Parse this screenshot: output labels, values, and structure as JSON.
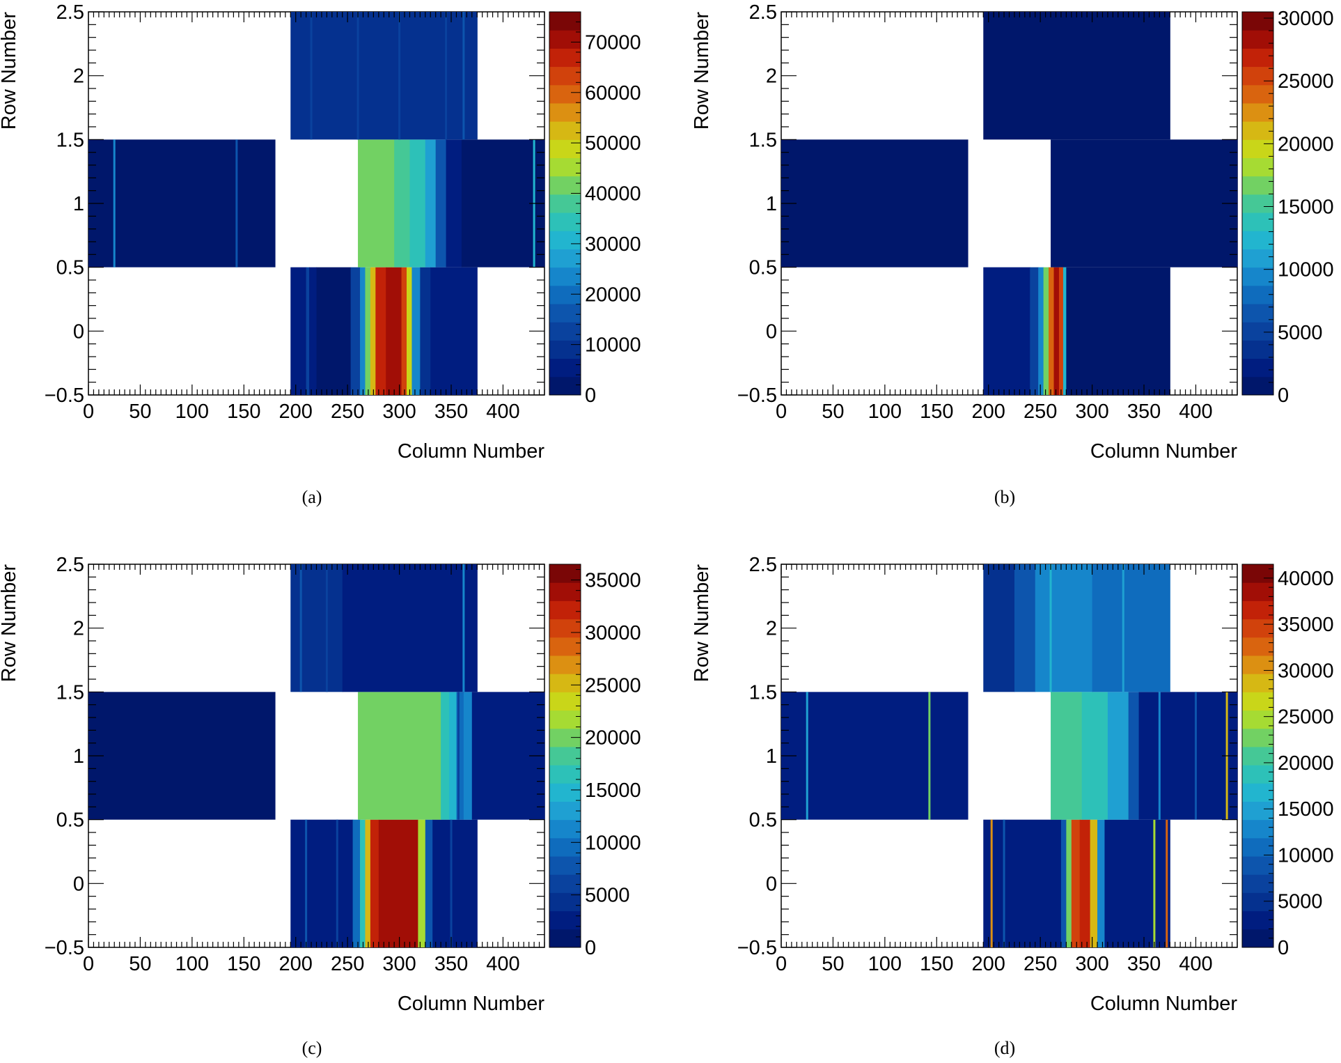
{
  "colormap": [
    "#00176b",
    "#001d80",
    "#05318f",
    "#0a429e",
    "#0d55ad",
    "#0f6cbd",
    "#1686cb",
    "#1fa0d2",
    "#22b5cf",
    "#2dc1b8",
    "#45c896",
    "#72d163",
    "#a6db33",
    "#c9d619",
    "#d6b814",
    "#dc9012",
    "#d9640f",
    "#d1420c",
    "#c22208",
    "#a10e06",
    "#7a0606"
  ],
  "chart_data": [
    {
      "type": "heatmap",
      "caption": "(a)",
      "xlabel": "Column Number",
      "ylabel": "Row Number",
      "xlim": [
        0,
        440
      ],
      "ylim": [
        -0.5,
        2.5
      ],
      "xticks": [
        "0",
        "50",
        "100",
        "150",
        "200",
        "250",
        "300",
        "350",
        "400"
      ],
      "yticks": [
        "−0.5",
        "0",
        "0.5",
        "1",
        "1.5",
        "2",
        "2.5"
      ],
      "zlim": [
        0,
        76000
      ],
      "zticks": [
        "0",
        "10000",
        "20000",
        "30000",
        "40000",
        "50000",
        "60000",
        "70000"
      ],
      "rows": [
        {
          "row": 0,
          "x_range": [
            195,
            375
          ],
          "segments": [
            [
              195,
              210,
              4000
            ],
            [
              210,
              213,
              12000
            ],
            [
              213,
              220,
              5000
            ],
            [
              220,
              253,
              3500
            ],
            [
              253,
              262,
              12000
            ],
            [
              262,
              267,
              25000
            ],
            [
              267,
              272,
              42000
            ],
            [
              272,
              277,
              52000
            ],
            [
              277,
              287,
              66000
            ],
            [
              287,
              292,
              72000
            ],
            [
              292,
              302,
              70000
            ],
            [
              302,
              307,
              62000
            ],
            [
              307,
              312,
              48000
            ],
            [
              312,
              320,
              25000
            ],
            [
              320,
              330,
              9000
            ],
            [
              330,
              375,
              4000
            ]
          ],
          "spikes": []
        },
        {
          "row": 1,
          "x_range": [
            0,
            180
          ],
          "segments": [
            [
              0,
              180,
              2500
            ]
          ],
          "spikes": [
            [
              25,
              22000
            ],
            [
              143,
              15000
            ]
          ]
        },
        {
          "row": 1,
          "x_range": [
            260,
            440
          ],
          "segments": [
            [
              260,
              295,
              42000
            ],
            [
              295,
              310,
              38000
            ],
            [
              310,
              325,
              33000
            ],
            [
              325,
              335,
              26000
            ],
            [
              335,
              345,
              15000
            ],
            [
              345,
              360,
              6000
            ],
            [
              360,
              440,
              3500
            ]
          ],
          "spikes": [
            [
              430,
              30000
            ]
          ]
        },
        {
          "row": 2,
          "x_range": [
            195,
            375
          ],
          "segments": [
            [
              195,
              375,
              9000
            ]
          ],
          "spikes": [
            [
              215,
              14000
            ],
            [
              260,
              13000
            ],
            [
              300,
              13500
            ],
            [
              345,
              12000
            ],
            [
              362,
              18000
            ]
          ]
        }
      ]
    },
    {
      "type": "heatmap",
      "caption": "(b)",
      "xlabel": "Column Number",
      "ylabel": "Row Number",
      "xlim": [
        0,
        440
      ],
      "ylim": [
        -0.5,
        2.5
      ],
      "xticks": [
        "0",
        "50",
        "100",
        "150",
        "200",
        "250",
        "300",
        "350",
        "400"
      ],
      "yticks": [
        "−0.5",
        "0",
        "0.5",
        "1",
        "1.5",
        "2",
        "2.5"
      ],
      "zlim": [
        0,
        30500
      ],
      "zticks": [
        "0",
        "5000",
        "10000",
        "15000",
        "20000",
        "25000",
        "30000"
      ],
      "rows": [
        {
          "row": 0,
          "x_range": [
            195,
            375
          ],
          "segments": [
            [
              195,
              240,
              1500
            ],
            [
              240,
              248,
              5000
            ],
            [
              248,
              253,
              10000
            ],
            [
              253,
              258,
              16000
            ],
            [
              258,
              263,
              24000
            ],
            [
              263,
              268,
              28000
            ],
            [
              268,
              272,
              26000
            ],
            [
              272,
              275,
              12000
            ],
            [
              275,
              375,
              800
            ]
          ],
          "spikes": []
        },
        {
          "row": 1,
          "x_range": [
            0,
            180
          ],
          "segments": [
            [
              0,
              180,
              500
            ]
          ],
          "spikes": []
        },
        {
          "row": 1,
          "x_range": [
            260,
            440
          ],
          "segments": [
            [
              260,
              440,
              500
            ]
          ],
          "spikes": []
        },
        {
          "row": 2,
          "x_range": [
            195,
            375
          ],
          "segments": [
            [
              195,
              375,
              500
            ]
          ],
          "spikes": []
        }
      ]
    },
    {
      "type": "heatmap",
      "caption": "(c)",
      "xlabel": "Column Number",
      "ylabel": "Row Number",
      "xlim": [
        0,
        440
      ],
      "ylim": [
        -0.5,
        2.5
      ],
      "xticks": [
        "0",
        "50",
        "100",
        "150",
        "200",
        "250",
        "300",
        "350",
        "400"
      ],
      "yticks": [
        "−0.5",
        "0",
        "0.5",
        "1",
        "1.5",
        "2",
        "2.5"
      ],
      "zlim": [
        0,
        36500
      ],
      "zticks": [
        "0",
        "5000",
        "10000",
        "15000",
        "20000",
        "25000",
        "30000",
        "35000"
      ],
      "rows": [
        {
          "row": 0,
          "x_range": [
            195,
            375
          ],
          "segments": [
            [
              195,
              255,
              2500
            ],
            [
              255,
              262,
              9000
            ],
            [
              262,
              267,
              16000
            ],
            [
              267,
              272,
              25000
            ],
            [
              272,
              280,
              32000
            ],
            [
              280,
              318,
              34000
            ],
            [
              318,
              325,
              22000
            ],
            [
              325,
              332,
              8000
            ],
            [
              332,
              375,
              2500
            ]
          ],
          "spikes": [
            [
              210,
              8000
            ],
            [
              240,
              6000
            ],
            [
              350,
              6000
            ]
          ]
        },
        {
          "row": 1,
          "x_range": [
            0,
            180
          ],
          "segments": [
            [
              0,
              180,
              1500
            ]
          ],
          "spikes": []
        },
        {
          "row": 1,
          "x_range": [
            260,
            440
          ],
          "segments": [
            [
              260,
              340,
              20000
            ],
            [
              340,
              348,
              17000
            ],
            [
              348,
              355,
              14000
            ],
            [
              355,
              362,
              9000
            ],
            [
              362,
              370,
              12000
            ],
            [
              370,
              440,
              2000
            ]
          ],
          "spikes": [
            [
              357,
              6000
            ]
          ]
        },
        {
          "row": 2,
          "x_range": [
            195,
            375
          ],
          "segments": [
            [
              195,
              245,
              4500
            ],
            [
              245,
              375,
              2000
            ]
          ],
          "spikes": [
            [
              205,
              7000
            ],
            [
              230,
              6500
            ],
            [
              362,
              12000
            ]
          ]
        }
      ]
    },
    {
      "type": "heatmap",
      "caption": "(d)",
      "xlabel": "Column Number",
      "ylabel": "Row Number",
      "xlim": [
        0,
        440
      ],
      "ylim": [
        -0.5,
        2.5
      ],
      "xticks": [
        "0",
        "50",
        "100",
        "150",
        "200",
        "250",
        "300",
        "350",
        "400"
      ],
      "yticks": [
        "−0.5",
        "0",
        "0.5",
        "1",
        "1.5",
        "2",
        "2.5"
      ],
      "zlim": [
        0,
        41500
      ],
      "zticks": [
        "0",
        "5000",
        "10000",
        "15000",
        "20000",
        "25000",
        "30000",
        "35000",
        "40000"
      ],
      "rows": [
        {
          "row": 0,
          "x_range": [
            195,
            375
          ],
          "segments": [
            [
              195,
              270,
              3000
            ],
            [
              270,
              275,
              9000
            ],
            [
              275,
              280,
              22000
            ],
            [
              280,
              288,
              34000
            ],
            [
              288,
              298,
              36000
            ],
            [
              298,
              305,
              28000
            ],
            [
              305,
              312,
              12000
            ],
            [
              312,
              375,
              3000
            ]
          ],
          "spikes": [
            [
              203,
              30000
            ],
            [
              215,
              9000
            ],
            [
              360,
              25000
            ],
            [
              372,
              32000
            ]
          ]
        },
        {
          "row": 1,
          "x_range": [
            0,
            180
          ],
          "segments": [
            [
              0,
              180,
              2500
            ]
          ],
          "spikes": [
            [
              25,
              14000
            ],
            [
              143,
              22000
            ]
          ]
        },
        {
          "row": 1,
          "x_range": [
            260,
            440
          ],
          "segments": [
            [
              260,
              290,
              20000
            ],
            [
              290,
              315,
              18000
            ],
            [
              315,
              335,
              14000
            ],
            [
              335,
              345,
              8000
            ],
            [
              345,
              440,
              3000
            ]
          ],
          "spikes": [
            [
              365,
              12000
            ],
            [
              400,
              9000
            ],
            [
              430,
              28000
            ]
          ]
        },
        {
          "row": 2,
          "x_range": [
            195,
            375
          ],
          "segments": [
            [
              195,
              225,
              5000
            ],
            [
              225,
              245,
              9000
            ],
            [
              245,
              300,
              13000
            ],
            [
              300,
              375,
              11000
            ]
          ],
          "spikes": [
            [
              260,
              16000
            ],
            [
              330,
              15000
            ]
          ]
        }
      ]
    }
  ]
}
